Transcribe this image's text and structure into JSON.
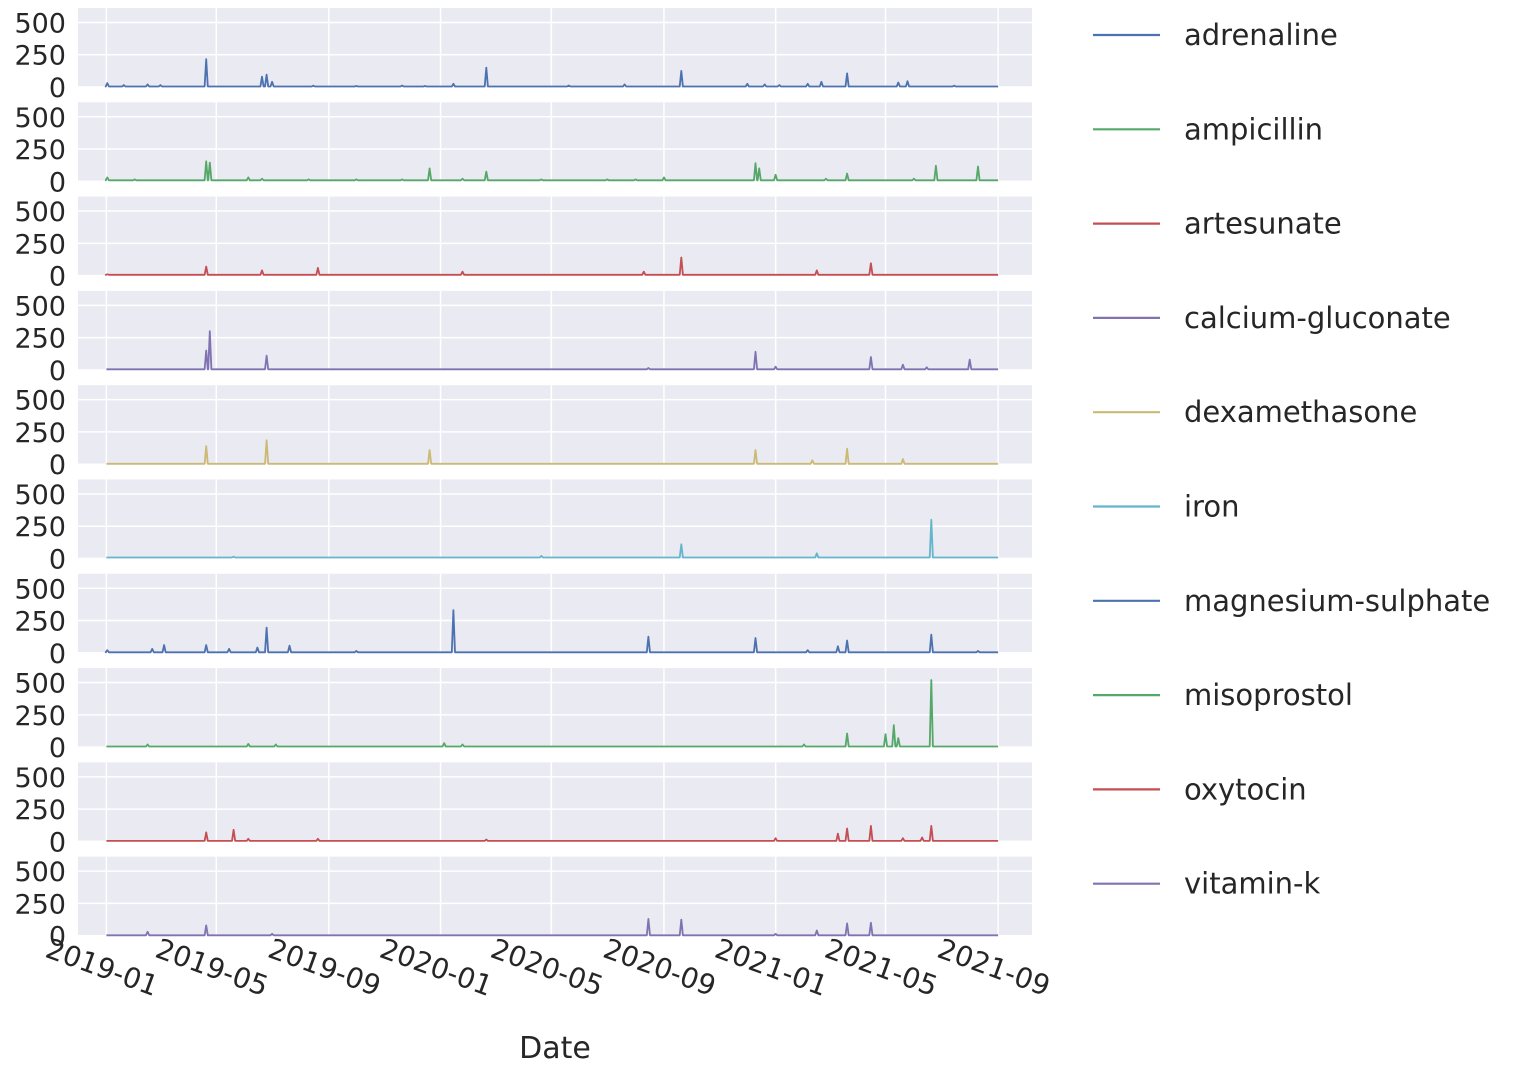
{
  "chart_data": {
    "type": "line",
    "layout": "small-multiples (one panel per series, shared x axis)",
    "xlabel": "Date",
    "ylabel": "",
    "ylim": [
      0,
      550
    ],
    "y_ticks": [
      0,
      250,
      500
    ],
    "xlim": [
      "2018-12-01",
      "2021-10-08"
    ],
    "x_ticks": [
      "2019-01",
      "2019-05",
      "2019-09",
      "2020-01",
      "2020-05",
      "2020-09",
      "2021-01",
      "2021-05",
      "2021-09"
    ],
    "grid": true,
    "legend_position": "right",
    "series": [
      {
        "name": "adrenaline",
        "color": "#4c72b0",
        "baseline": 4,
        "points": [
          [
            "2019-01-02",
            30
          ],
          [
            "2019-01-20",
            15
          ],
          [
            "2019-02-15",
            20
          ],
          [
            "2019-03-01",
            15
          ],
          [
            "2019-04-20",
            215
          ],
          [
            "2019-06-20",
            80
          ],
          [
            "2019-06-25",
            95
          ],
          [
            "2019-07-01",
            40
          ],
          [
            "2019-08-15",
            10
          ],
          [
            "2019-10-01",
            8
          ],
          [
            "2019-11-20",
            12
          ],
          [
            "2019-12-15",
            8
          ],
          [
            "2020-01-15",
            25
          ],
          [
            "2020-02-20",
            150
          ],
          [
            "2020-05-20",
            12
          ],
          [
            "2020-07-20",
            20
          ],
          [
            "2020-09-20",
            125
          ],
          [
            "2020-12-01",
            25
          ],
          [
            "2020-12-20",
            20
          ],
          [
            "2021-01-05",
            15
          ],
          [
            "2021-02-05",
            25
          ],
          [
            "2021-02-20",
            40
          ],
          [
            "2021-03-20",
            105
          ],
          [
            "2021-05-15",
            35
          ],
          [
            "2021-05-25",
            45
          ],
          [
            "2021-07-15",
            10
          ]
        ]
      },
      {
        "name": "ampicillin",
        "color": "#55a868",
        "baseline": 8,
        "points": [
          [
            "2019-01-02",
            30
          ],
          [
            "2019-02-01",
            15
          ],
          [
            "2019-04-20",
            155
          ],
          [
            "2019-04-24",
            145
          ],
          [
            "2019-06-05",
            30
          ],
          [
            "2019-06-20",
            20
          ],
          [
            "2019-08-10",
            15
          ],
          [
            "2019-10-01",
            15
          ],
          [
            "2019-11-20",
            15
          ],
          [
            "2019-12-20",
            100
          ],
          [
            "2020-01-25",
            20
          ],
          [
            "2020-02-20",
            75
          ],
          [
            "2020-04-20",
            15
          ],
          [
            "2020-07-01",
            15
          ],
          [
            "2020-08-01",
            15
          ],
          [
            "2020-09-01",
            30
          ],
          [
            "2020-12-10",
            140
          ],
          [
            "2020-12-14",
            100
          ],
          [
            "2021-01-01",
            50
          ],
          [
            "2021-02-25",
            20
          ],
          [
            "2021-03-20",
            60
          ],
          [
            "2021-06-01",
            20
          ],
          [
            "2021-06-25",
            120
          ],
          [
            "2021-08-10",
            115
          ]
        ]
      },
      {
        "name": "artesunate",
        "color": "#c44e52",
        "baseline": 6,
        "points": [
          [
            "2019-01-02",
            10
          ],
          [
            "2019-04-20",
            70
          ],
          [
            "2019-06-20",
            40
          ],
          [
            "2019-08-20",
            60
          ],
          [
            "2020-01-25",
            30
          ],
          [
            "2020-08-10",
            30
          ],
          [
            "2020-09-20",
            140
          ],
          [
            "2021-02-15",
            40
          ],
          [
            "2021-04-15",
            95
          ]
        ]
      },
      {
        "name": "calcium-gluconate",
        "color": "#8172b2",
        "baseline": 5,
        "points": [
          [
            "2019-04-20",
            150
          ],
          [
            "2019-04-24",
            300
          ],
          [
            "2019-06-25",
            110
          ],
          [
            "2020-08-15",
            15
          ],
          [
            "2020-12-10",
            140
          ],
          [
            "2021-01-01",
            25
          ],
          [
            "2021-04-15",
            100
          ],
          [
            "2021-05-20",
            40
          ],
          [
            "2021-06-15",
            20
          ],
          [
            "2021-08-01",
            80
          ]
        ]
      },
      {
        "name": "dexamethasone",
        "color": "#ccb974",
        "baseline": 3,
        "points": [
          [
            "2019-04-20",
            140
          ],
          [
            "2019-06-25",
            185
          ],
          [
            "2019-12-20",
            110
          ],
          [
            "2020-12-10",
            110
          ],
          [
            "2021-02-10",
            30
          ],
          [
            "2021-03-20",
            120
          ],
          [
            "2021-05-20",
            40
          ]
        ]
      },
      {
        "name": "iron",
        "color": "#64b5cd",
        "baseline": 8,
        "points": [
          [
            "2019-05-20",
            15
          ],
          [
            "2020-04-20",
            20
          ],
          [
            "2020-09-20",
            110
          ],
          [
            "2021-02-15",
            40
          ],
          [
            "2021-06-20",
            300
          ]
        ]
      },
      {
        "name": "magnesium-sulphate",
        "color": "#4c72b0",
        "baseline": 4,
        "points": [
          [
            "2019-01-02",
            20
          ],
          [
            "2019-02-20",
            30
          ],
          [
            "2019-03-05",
            60
          ],
          [
            "2019-04-20",
            60
          ],
          [
            "2019-05-15",
            30
          ],
          [
            "2019-06-15",
            40
          ],
          [
            "2019-06-25",
            195
          ],
          [
            "2019-07-20",
            55
          ],
          [
            "2019-10-01",
            15
          ],
          [
            "2020-01-15",
            330
          ],
          [
            "2020-08-15",
            125
          ],
          [
            "2020-12-10",
            115
          ],
          [
            "2021-02-05",
            20
          ],
          [
            "2021-03-10",
            50
          ],
          [
            "2021-03-20",
            95
          ],
          [
            "2021-06-20",
            140
          ],
          [
            "2021-08-10",
            15
          ]
        ]
      },
      {
        "name": "misoprostol",
        "color": "#55a868",
        "baseline": 5,
        "points": [
          [
            "2019-02-15",
            20
          ],
          [
            "2019-06-05",
            25
          ],
          [
            "2019-07-05",
            20
          ],
          [
            "2020-01-05",
            30
          ],
          [
            "2020-01-25",
            20
          ],
          [
            "2021-02-01",
            20
          ],
          [
            "2021-03-20",
            105
          ],
          [
            "2021-05-01",
            100
          ],
          [
            "2021-05-10",
            170
          ],
          [
            "2021-05-15",
            70
          ],
          [
            "2021-06-20",
            520
          ]
        ]
      },
      {
        "name": "oxytocin",
        "color": "#c44e52",
        "baseline": 4,
        "points": [
          [
            "2019-04-20",
            70
          ],
          [
            "2019-05-20",
            90
          ],
          [
            "2019-06-05",
            20
          ],
          [
            "2019-08-20",
            20
          ],
          [
            "2020-02-20",
            15
          ],
          [
            "2021-01-01",
            25
          ],
          [
            "2021-03-10",
            60
          ],
          [
            "2021-03-20",
            100
          ],
          [
            "2021-04-15",
            120
          ],
          [
            "2021-05-20",
            25
          ],
          [
            "2021-06-10",
            30
          ],
          [
            "2021-06-20",
            120
          ]
        ]
      },
      {
        "name": "vitamin-k",
        "color": "#8172b2",
        "baseline": 3,
        "points": [
          [
            "2019-02-15",
            30
          ],
          [
            "2019-04-20",
            80
          ],
          [
            "2019-07-01",
            15
          ],
          [
            "2020-08-15",
            130
          ],
          [
            "2020-09-20",
            125
          ],
          [
            "2021-01-01",
            15
          ],
          [
            "2021-02-15",
            40
          ],
          [
            "2021-03-20",
            95
          ],
          [
            "2021-04-15",
            100
          ]
        ]
      }
    ]
  }
}
